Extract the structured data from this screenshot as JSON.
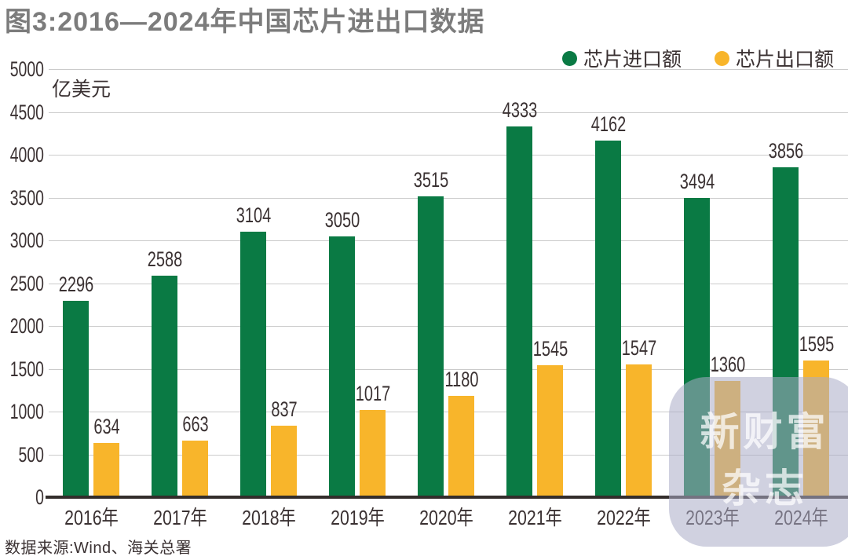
{
  "title": "图3:2016—2024年中国芯片进出口数据",
  "unit_label": "亿美元",
  "source": "数据来源:Wind、海关总署",
  "watermark": {
    "line1": "新财富",
    "line2": "杂志"
  },
  "colors": {
    "import_green": "#0a7a44",
    "export_yellow": "#f8b52b",
    "title_gray": "#7c7c7c",
    "label_text": "#3a3132",
    "grid": "#cbcbcb",
    "baseline": "#332d2b"
  },
  "chart_data": {
    "type": "bar",
    "title": "图3:2016—2024年中国芯片进出口数据",
    "categories": [
      "2016年",
      "2017年",
      "2018年",
      "2019年",
      "2020年",
      "2021年",
      "2022年",
      "2023年",
      "2024年"
    ],
    "series": [
      {
        "name": "芯片进口额",
        "color": "#0a7a44",
        "values": [
          2296,
          2588,
          3104,
          3050,
          3515,
          4333,
          4162,
          3494,
          3856
        ]
      },
      {
        "name": "芯片出口额",
        "color": "#f8b52b",
        "values": [
          634,
          663,
          837,
          1017,
          1180,
          1545,
          1547,
          1360,
          1595
        ]
      }
    ],
    "xlabel": "",
    "ylabel": "亿美元",
    "ylim": [
      0,
      5000
    ],
    "ytick_step": 500,
    "grid": true,
    "legend_position": "top-right",
    "data_labels": true
  }
}
